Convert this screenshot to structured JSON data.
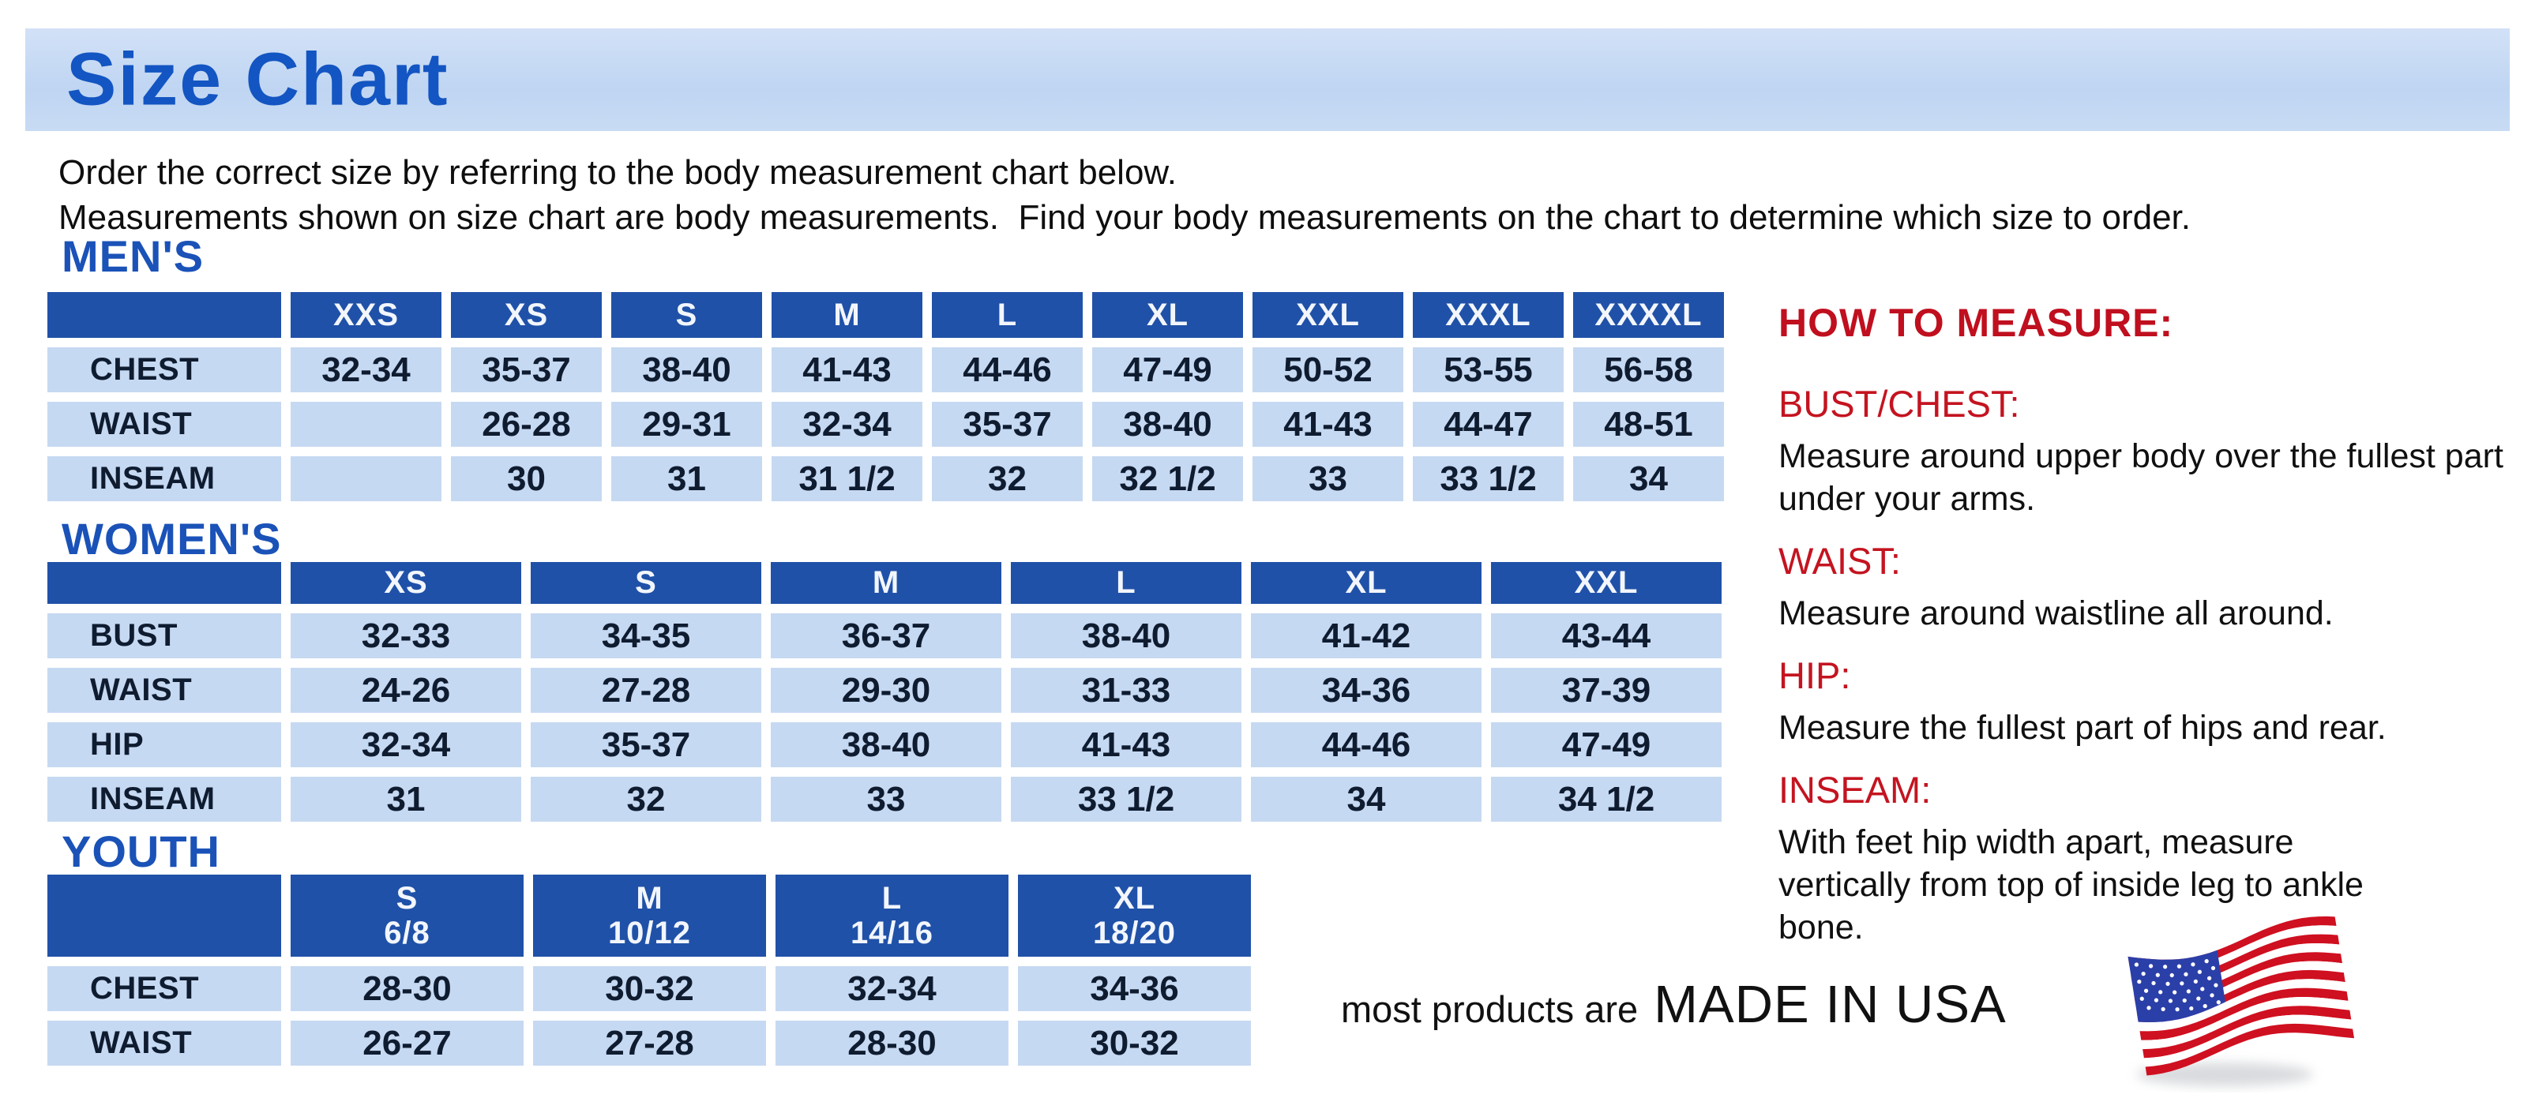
{
  "banner": {
    "title": "Size Chart"
  },
  "intro": {
    "line1": "Order the correct size by referring to the body measurement chart below.",
    "line2": "Measurements shown on size chart are body measurements.  Find your body measurements on the chart to determine which size to order."
  },
  "colors": {
    "banner_bg": "#c3d8f2",
    "heading_blue": "#1a52b8",
    "table_header_bg": "#2051a8",
    "table_cell_bg": "#c6d9f2",
    "cell_text": "#0f1c30",
    "accent_red": "#c00f1e",
    "flag_red": "#cf1020",
    "flag_blue": "#2b3fa8"
  },
  "tables": {
    "mens": {
      "heading": "MEN'S",
      "columns": [
        "XXS",
        "XS",
        "S",
        "M",
        "L",
        "XL",
        "XXL",
        "XXXL",
        "XXXXL"
      ],
      "rows": [
        {
          "label": "CHEST",
          "values": [
            "32-34",
            "35-37",
            "38-40",
            "41-43",
            "44-46",
            "47-49",
            "50-52",
            "53-55",
            "56-58"
          ]
        },
        {
          "label": "WAIST",
          "values": [
            "",
            "26-28",
            "29-31",
            "32-34",
            "35-37",
            "38-40",
            "41-43",
            "44-47",
            "48-51"
          ]
        },
        {
          "label": "INSEAM",
          "values": [
            "",
            "30",
            "31",
            "31 1/2",
            "32",
            "32 1/2",
            "33",
            "33 1/2",
            "34"
          ]
        }
      ]
    },
    "womens": {
      "heading": "WOMEN'S",
      "columns": [
        "XS",
        "S",
        "M",
        "L",
        "XL",
        "XXL"
      ],
      "rows": [
        {
          "label": "BUST",
          "values": [
            "32-33",
            "34-35",
            "36-37",
            "38-40",
            "41-42",
            "43-44"
          ]
        },
        {
          "label": "WAIST",
          "values": [
            "24-26",
            "27-28",
            "29-30",
            "31-33",
            "34-36",
            "37-39"
          ]
        },
        {
          "label": "HIP",
          "values": [
            "32-34",
            "35-37",
            "38-40",
            "41-43",
            "44-46",
            "47-49"
          ]
        },
        {
          "label": "INSEAM",
          "values": [
            "31",
            "32",
            "33",
            "33 1/2",
            "34",
            "34 1/2"
          ]
        }
      ]
    },
    "youth": {
      "heading": "YOUTH",
      "columns": [
        {
          "size": "S",
          "range": "6/8"
        },
        {
          "size": "M",
          "range": "10/12"
        },
        {
          "size": "L",
          "range": "14/16"
        },
        {
          "size": "XL",
          "range": "18/20"
        }
      ],
      "rows": [
        {
          "label": "CHEST",
          "values": [
            "28-30",
            "30-32",
            "32-34",
            "34-36"
          ]
        },
        {
          "label": "WAIST",
          "values": [
            "26-27",
            "27-28",
            "28-30",
            "30-32"
          ]
        }
      ]
    }
  },
  "how_to_measure": {
    "heading": "HOW TO MEASURE:",
    "items": [
      {
        "term": "BUST/CHEST:",
        "description": "Measure around upper body over the fullest part under your arms."
      },
      {
        "term": "WAIST:",
        "description": "Measure around waistline all around."
      },
      {
        "term": "HIP:",
        "description": "Measure the fullest part of hips and rear."
      },
      {
        "term": "INSEAM:",
        "description": "With feet hip width apart, measure vertically from top of inside leg to ankle bone."
      }
    ]
  },
  "footer": {
    "prefix": "most products are",
    "made_in": "MADE IN USA",
    "flag": "us-flag-icon"
  }
}
